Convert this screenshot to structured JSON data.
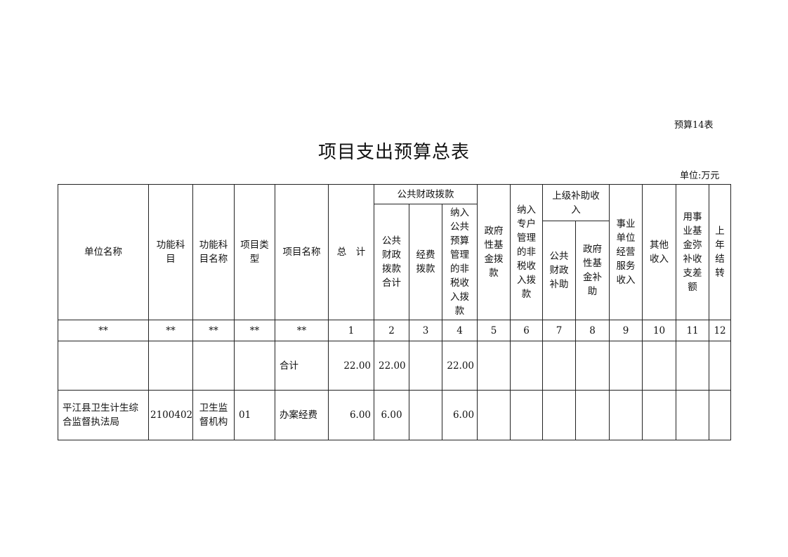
{
  "form_no": "预算14表",
  "title": "项目支出预算总表",
  "unit": "单位:万元",
  "headers": {
    "unit_name": "单位名称",
    "func_code": "功能科\n目",
    "func_name": "功能科\n目名称",
    "proj_type": "项目类\n型",
    "proj_name": "项目名称",
    "total": "总　计",
    "public_finance": "公共财政拨款",
    "pf_total": "公共\n财政\n拨款\n合计",
    "pf_expense": "经费\n拨款",
    "pf_nontax": "纳入\n公共\n预算\n管理\n的非\n税收\n入拨\n款",
    "gov_fund": "政府\n性基\n金拨\n款",
    "special_nontax": "纳入\n专户\n管理\n的非\n税收\n入拨\n款",
    "superior": "上级补助收\n入",
    "sup_public": "公共\n财政\n补助",
    "sup_gov_fund": "政府\n性基\n金补\n助",
    "business": "事业\n单位\n经营\n服务\n收入",
    "other": "其他\n收入",
    "fund_offset": "用事\n业基\n金弥\n补收\n支差\n额",
    "carryover": "上\n年\n结\n转"
  },
  "index_row": [
    "**",
    "**",
    "**",
    "**",
    "**",
    "1",
    "2",
    "3",
    "4",
    "5",
    "6",
    "7",
    "8",
    "9",
    "10",
    "11",
    "12"
  ],
  "rows": [
    {
      "unit_name": "",
      "func_code": "",
      "func_name": "",
      "proj_type": "",
      "proj_name": "合计",
      "total": "22.00",
      "pf_total": "22.00",
      "pf_expense": "",
      "pf_nontax": "22.00"
    },
    {
      "unit_name": "平江县卫生计生综合监督执法局",
      "func_code": "2100402",
      "func_name": "卫生监\n督机构",
      "proj_type": "01",
      "proj_name": "办案经费",
      "total": "6.00",
      "pf_total": "6.00",
      "pf_expense": "",
      "pf_nontax": "6.00"
    }
  ]
}
